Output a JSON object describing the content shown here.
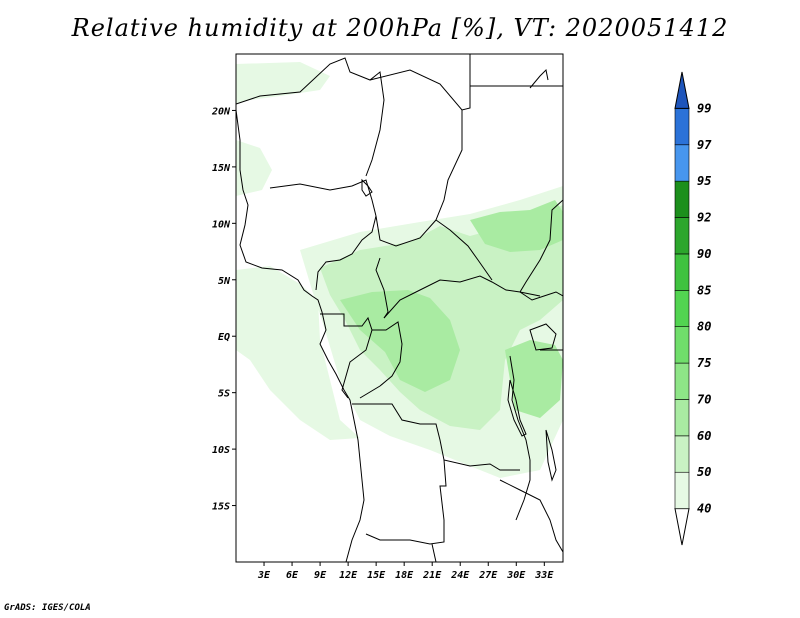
{
  "title": "Relative humidity at 200hPa [%], VT: 2020051412",
  "credit": "GrADS: IGES/COLA",
  "map": {
    "lon_range": [
      0,
      35
    ],
    "lat_range": [
      -20,
      25
    ],
    "lon_ticks": [
      {
        "value": 3,
        "label": "3E"
      },
      {
        "value": 6,
        "label": "6E"
      },
      {
        "value": 9,
        "label": "9E"
      },
      {
        "value": 12,
        "label": "12E"
      },
      {
        "value": 15,
        "label": "15E"
      },
      {
        "value": 18,
        "label": "18E"
      },
      {
        "value": 21,
        "label": "21E"
      },
      {
        "value": 24,
        "label": "24E"
      },
      {
        "value": 27,
        "label": "27E"
      },
      {
        "value": 30,
        "label": "30E"
      },
      {
        "value": 33,
        "label": "33E"
      }
    ],
    "lat_ticks": [
      {
        "value": 20,
        "label": "20N"
      },
      {
        "value": 15,
        "label": "15N"
      },
      {
        "value": 10,
        "label": "10N"
      },
      {
        "value": 5,
        "label": "5N"
      },
      {
        "value": 0,
        "label": "EQ"
      },
      {
        "value": -5,
        "label": "5S"
      },
      {
        "value": -10,
        "label": "10S"
      },
      {
        "value": -15,
        "label": "15S"
      }
    ]
  },
  "colorbar": {
    "levels": [
      "40",
      "50",
      "60",
      "70",
      "75",
      "80",
      "85",
      "90",
      "92",
      "95",
      "97",
      "99"
    ],
    "colors": [
      "#e6f9e4",
      "#c9f2c4",
      "#a9eba2",
      "#8ee587",
      "#70de6b",
      "#52d451",
      "#3fc23f",
      "#2ca62c",
      "#1c8f1c",
      "#4796ee",
      "#2b72d8",
      "#1e55bb"
    ]
  }
}
